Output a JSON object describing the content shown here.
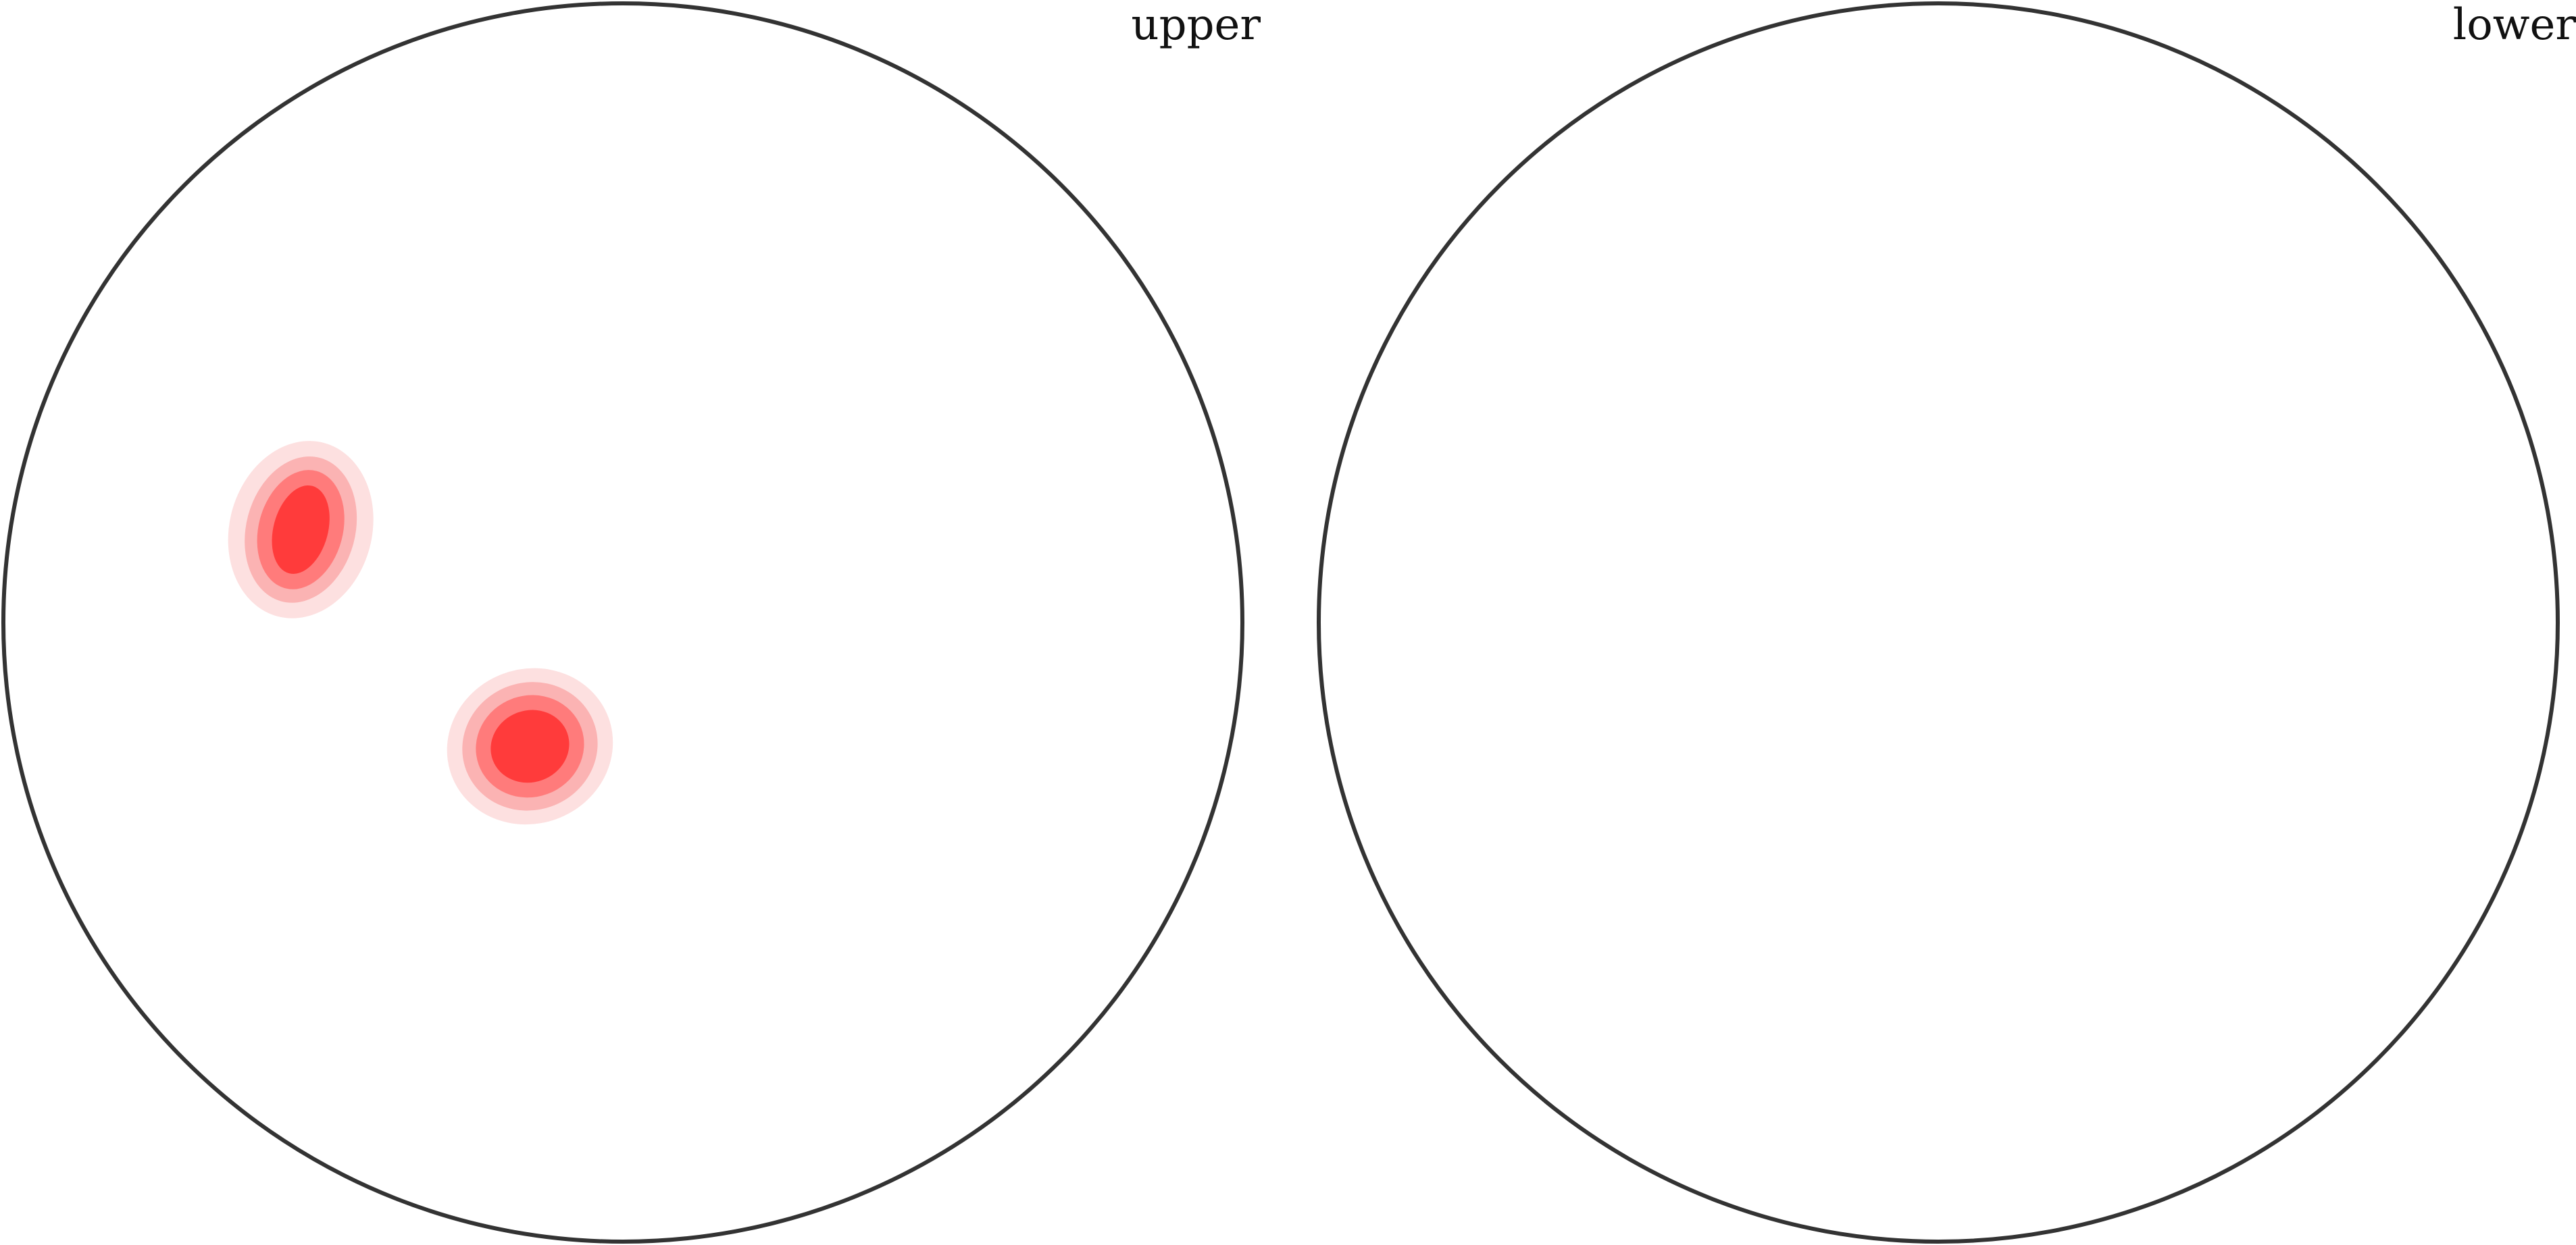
{
  "chart_data": {
    "type": "heatmap",
    "panels": [
      {
        "label": "upper",
        "density_colors": [
          "#fde0e0",
          "#fbb3b3",
          "#ff7b7b",
          "#ff3b3b"
        ],
        "clusters": [
          {
            "center": [
              -0.52,
              0.15
            ],
            "levels": [
              {
                "rx": 0.115,
                "ry": 0.145,
                "rotation": 15
              },
              {
                "rx": 0.088,
                "ry": 0.12,
                "rotation": 15
              },
              {
                "rx": 0.068,
                "ry": 0.098,
                "rotation": 15
              },
              {
                "rx": 0.044,
                "ry": 0.073,
                "rotation": 15
              }
            ]
          },
          {
            "center": [
              -0.15,
              -0.2
            ],
            "levels": [
              {
                "rx": 0.135,
                "ry": 0.125,
                "rotation": -20
              },
              {
                "rx": 0.11,
                "ry": 0.103,
                "rotation": -20
              },
              {
                "rx": 0.088,
                "ry": 0.082,
                "rotation": -20
              },
              {
                "rx": 0.064,
                "ry": 0.058,
                "rotation": -20
              }
            ]
          }
        ]
      },
      {
        "label": "lower",
        "density_colors": [
          "#fde0e0",
          "#fbb3b3",
          "#ff7b7b",
          "#ff3b3b"
        ],
        "clusters": []
      }
    ]
  }
}
